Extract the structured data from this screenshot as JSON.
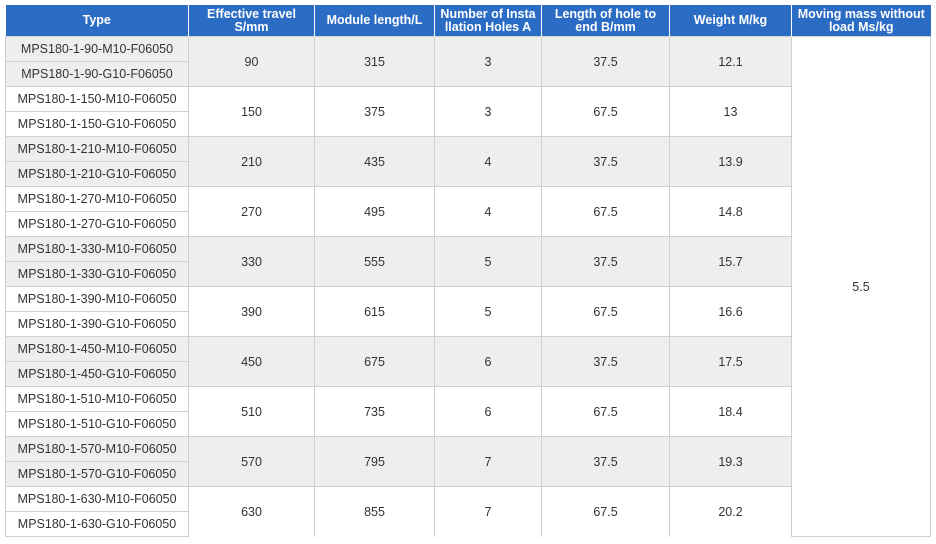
{
  "headers": {
    "type": "Type",
    "travel": "Effective travel S/mm",
    "length": "Module length/L",
    "holes": "Number of Insta llation Holes A",
    "hole_end": "Length of hole to end B/mm",
    "weight": "Weight M/kg",
    "moving_mass": "Moving mass without load Ms/kg"
  },
  "moving_mass_value": "5.5",
  "groups": [
    {
      "types": [
        "MPS180-1-90-M10-F06050",
        "MPS180-1-90-G10-F06050"
      ],
      "travel": "90",
      "length": "315",
      "holes": "3",
      "hole_end": "37.5",
      "weight": "12.1"
    },
    {
      "types": [
        "MPS180-1-150-M10-F06050",
        "MPS180-1-150-G10-F06050"
      ],
      "travel": "150",
      "length": "375",
      "holes": "3",
      "hole_end": "67.5",
      "weight": "13"
    },
    {
      "types": [
        "MPS180-1-210-M10-F06050",
        "MPS180-1-210-G10-F06050"
      ],
      "travel": "210",
      "length": "435",
      "holes": "4",
      "hole_end": "37.5",
      "weight": "13.9"
    },
    {
      "types": [
        "MPS180-1-270-M10-F06050",
        "MPS180-1-270-G10-F06050"
      ],
      "travel": "270",
      "length": "495",
      "holes": "4",
      "hole_end": "67.5",
      "weight": "14.8"
    },
    {
      "types": [
        "MPS180-1-330-M10-F06050",
        "MPS180-1-330-G10-F06050"
      ],
      "travel": "330",
      "length": "555",
      "holes": "5",
      "hole_end": "37.5",
      "weight": "15.7"
    },
    {
      "types": [
        "MPS180-1-390-M10-F06050",
        "MPS180-1-390-G10-F06050"
      ],
      "travel": "390",
      "length": "615",
      "holes": "5",
      "hole_end": "67.5",
      "weight": "16.6"
    },
    {
      "types": [
        "MPS180-1-450-M10-F06050",
        "MPS180-1-450-G10-F06050"
      ],
      "travel": "450",
      "length": "675",
      "holes": "6",
      "hole_end": "37.5",
      "weight": "17.5"
    },
    {
      "types": [
        "MPS180-1-510-M10-F06050",
        "MPS180-1-510-G10-F06050"
      ],
      "travel": "510",
      "length": "735",
      "holes": "6",
      "hole_end": "67.5",
      "weight": "18.4"
    },
    {
      "types": [
        "MPS180-1-570-M10-F06050",
        "MPS180-1-570-G10-F06050"
      ],
      "travel": "570",
      "length": "795",
      "holes": "7",
      "hole_end": "37.5",
      "weight": "19.3"
    },
    {
      "types": [
        "MPS180-1-630-M10-F06050",
        "MPS180-1-630-G10-F06050"
      ],
      "travel": "630",
      "length": "855",
      "holes": "7",
      "hole_end": "67.5",
      "weight": "20.2"
    }
  ]
}
